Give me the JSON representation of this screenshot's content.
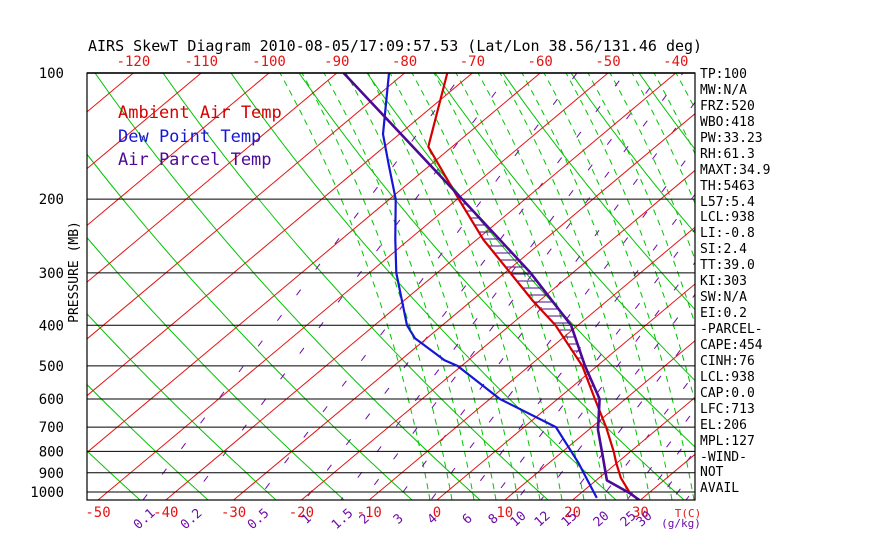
{
  "title": "AIRS SkewT Diagram 2010-08-05/17:09:57.53 (Lat/Lon 38.56/131.46 deg)",
  "colors": {
    "ambient": "#d40000",
    "dewpoint": "#1616d6",
    "parcel": "#4b0a96",
    "isotherm_thin": "#e41414",
    "adiabat_green": "#00c400",
    "mixing_purple": "#6e0ca8",
    "axis_black": "#000000",
    "red_label": "#e41414"
  },
  "legend": {
    "items": [
      {
        "label": "Ambient Air Temp",
        "color": "#d40000"
      },
      {
        "label": "Dew Point Temp",
        "color": "#1616d6"
      },
      {
        "label": "Air Parcel Temp",
        "color": "#4b0a96"
      }
    ]
  },
  "stats": {
    "items": [
      "TP:100",
      "MW:N/A",
      "FRZ:520",
      "WBO:418",
      "PW:33.23",
      "RH:61.3",
      "MAXT:34.9",
      "TH:5463",
      "L57:5.4",
      "LCL:938",
      "LI:-0.8",
      "SI:2.4",
      "TT:39.0",
      "KI:303",
      "SW:N/A",
      "EI:0.2",
      "-PARCEL-",
      "CAPE:454",
      "CINH:76",
      "LCL:938",
      "CAP:0.0",
      "LFC:713",
      "EL:206",
      "MPL:127",
      "-WIND-",
      "NOT",
      "AVAIL"
    ]
  },
  "axes": {
    "pressure_label": "PRESSURE (MB)",
    "pressure_ticks": [
      100,
      200,
      300,
      400,
      500,
      600,
      700,
      800,
      900,
      1000
    ],
    "top_temp_ticks": [
      -120,
      -110,
      -100,
      -90,
      -80,
      -70,
      -60,
      -50,
      -40
    ],
    "bottom_temp_ticks": [
      -50,
      -40,
      -30,
      -20,
      -10,
      0,
      10,
      20,
      30
    ],
    "temp_unit": "T(C)",
    "mixing_ticks": [
      "0.1",
      "0.2",
      "0.5",
      "1",
      "1.5",
      "2",
      "3",
      "4",
      "6",
      "8",
      "10",
      "12",
      "15",
      "20",
      "25",
      "30"
    ],
    "mixing_tick_x": [
      143,
      190,
      257,
      305,
      341,
      363,
      397,
      431,
      466,
      492,
      517,
      541,
      568,
      600,
      627,
      643
    ],
    "mixing_unit": "(g/kg)"
  },
  "chart_data": {
    "type": "line",
    "title": "AIRS SkewT Diagram 2010-08-05/17:09:57.53 (Lat/Lon 38.56/131.46 deg)",
    "xlabel": "T(C)",
    "ylabel": "PRESSURE (MB)",
    "y_axis": {
      "scale": "log",
      "ticks": [
        100,
        200,
        300,
        400,
        500,
        600,
        700,
        800,
        900,
        1000
      ],
      "range": [
        100,
        1050
      ],
      "unit": "MB"
    },
    "x_axis": {
      "bottom_ticks": [
        -50,
        -40,
        -30,
        -20,
        -10,
        0,
        10,
        20,
        30
      ],
      "top_ticks": [
        -120,
        -110,
        -100,
        -90,
        -80,
        -70,
        -60,
        -50,
        -40
      ],
      "skewed": true,
      "unit": "C"
    },
    "legend_position": "top-left-inside",
    "grid": "skewt (isotherms, dry/moist adiabats, mixing-ratio lines)",
    "hatch_between": [
      "Air Parcel Temp",
      "Ambient Air Temp"
    ],
    "series": [
      {
        "name": "Ambient Air Temp",
        "color": "#d40000",
        "units": [
          "hPa",
          "C"
        ],
        "points": [
          [
            100,
            -73.7
          ],
          [
            150,
            -63.5
          ],
          [
            200,
            -49.8
          ],
          [
            250,
            -39.0
          ],
          [
            300,
            -29.2
          ],
          [
            350,
            -20.9
          ],
          [
            400,
            -13.3
          ],
          [
            500,
            -2.2
          ],
          [
            600,
            5.5
          ],
          [
            700,
            12.1
          ],
          [
            800,
            17.5
          ],
          [
            850,
            19.8
          ],
          [
            925,
            23.2
          ],
          [
            1005,
            27.2
          ]
        ]
      },
      {
        "name": "Dew Point Temp",
        "color": "#1616d6",
        "units": [
          "hPa",
          "C"
        ],
        "points": [
          [
            100,
            -82.3
          ],
          [
            140,
            -72.4
          ],
          [
            165,
            -66.3
          ],
          [
            200,
            -59.1
          ],
          [
            250,
            -52.0
          ],
          [
            300,
            -46.0
          ],
          [
            400,
            -35.2
          ],
          [
            430,
            -31.7
          ],
          [
            485,
            -23.5
          ],
          [
            500,
            -20.6
          ],
          [
            600,
            -8.5
          ],
          [
            700,
            4.7
          ],
          [
            850,
            14.2
          ],
          [
            925,
            18.1
          ],
          [
            1000,
            21.7
          ],
          [
            1033,
            23.2
          ]
        ]
      },
      {
        "name": "Air Parcel Temp",
        "color": "#4b0a96",
        "units": [
          "hPa",
          "C"
        ],
        "points": [
          [
            100,
            -89.0
          ],
          [
            200,
            -49.3
          ],
          [
            300,
            -26.2
          ],
          [
            400,
            -11.0
          ],
          [
            500,
            -1.8
          ],
          [
            600,
            6.2
          ],
          [
            711,
            11.4
          ],
          [
            825,
            16.9
          ],
          [
            938,
            21.6
          ],
          [
            1006,
            27.2
          ],
          [
            1046,
            29.9
          ]
        ]
      }
    ]
  }
}
